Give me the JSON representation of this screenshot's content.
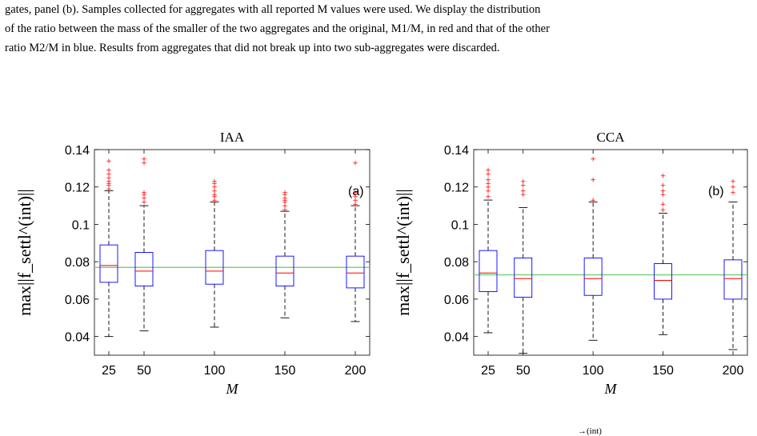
{
  "caption": {
    "line1": "gates, panel (b). Samples collected for aggregates with all reported M values were used. We display the distribution",
    "line2": "of the ratio between the mass of the smaller of the two aggregates and the original, M1/M, in red and that of the other",
    "line3": "ratio M2/M in blue. Results from aggregates that did not break up into two sub-aggregates were discarded."
  },
  "footer_fragment": "→(int)",
  "colors": {
    "box": "#0000ff",
    "median": "#ff0000",
    "outlier": "#ff0000",
    "reference": "#7fd07f",
    "whisker": "#000000"
  },
  "chart_data": [
    {
      "type": "box",
      "title": "IAA",
      "panel_label": "(a)",
      "xlabel": "M",
      "ylabel": "max||f_settl^(int)||",
      "categories": [
        "25",
        "50",
        "100",
        "150",
        "200"
      ],
      "x": [
        25,
        50,
        100,
        150,
        200
      ],
      "ylim": [
        0.03,
        0.14
      ],
      "yticks": [
        "0.04",
        "0.06",
        "0.08",
        "0.1",
        "0.12",
        "0.14"
      ],
      "reference_line": 0.077,
      "boxes": [
        {
          "whislo": 0.04,
          "q1": 0.069,
          "med": 0.078,
          "q3": 0.089,
          "whishi": 0.118,
          "fliers": [
            0.119,
            0.121,
            0.122,
            0.123,
            0.125,
            0.127,
            0.129,
            0.134
          ]
        },
        {
          "whislo": 0.043,
          "q1": 0.067,
          "med": 0.075,
          "q3": 0.085,
          "whishi": 0.11,
          "fliers": [
            0.112,
            0.114,
            0.116,
            0.117,
            0.133,
            0.135
          ]
        },
        {
          "whislo": 0.045,
          "q1": 0.068,
          "med": 0.075,
          "q3": 0.086,
          "whishi": 0.112,
          "fliers": [
            0.113,
            0.115,
            0.116,
            0.118,
            0.12,
            0.122,
            0.123
          ]
        },
        {
          "whislo": 0.05,
          "q1": 0.067,
          "med": 0.074,
          "q3": 0.083,
          "whishi": 0.107,
          "fliers": [
            0.108,
            0.11,
            0.112,
            0.113,
            0.114,
            0.116,
            0.117
          ]
        },
        {
          "whislo": 0.048,
          "q1": 0.066,
          "med": 0.074,
          "q3": 0.083,
          "whishi": 0.11,
          "fliers": [
            0.111,
            0.113,
            0.115,
            0.117,
            0.133
          ]
        }
      ]
    },
    {
      "type": "box",
      "title": "CCA",
      "panel_label": "(b)",
      "xlabel": "M",
      "ylabel": "max||f_settl^(int)||",
      "categories": [
        "25",
        "50",
        "100",
        "150",
        "200"
      ],
      "x": [
        25,
        50,
        100,
        150,
        200
      ],
      "ylim": [
        0.03,
        0.14
      ],
      "yticks": [
        "0.04",
        "0.06",
        "0.08",
        "0.1",
        "0.12",
        "0.14"
      ],
      "reference_line": 0.073,
      "boxes": [
        {
          "whislo": 0.042,
          "q1": 0.064,
          "med": 0.074,
          "q3": 0.086,
          "whishi": 0.113,
          "fliers": [
            0.115,
            0.118,
            0.12,
            0.122,
            0.124,
            0.127,
            0.129
          ]
        },
        {
          "whislo": 0.031,
          "q1": 0.061,
          "med": 0.071,
          "q3": 0.082,
          "whishi": 0.109,
          "fliers": [
            0.116,
            0.118,
            0.121,
            0.123
          ]
        },
        {
          "whislo": 0.038,
          "q1": 0.062,
          "med": 0.071,
          "q3": 0.082,
          "whishi": 0.112,
          "fliers": [
            0.113,
            0.124,
            0.135
          ]
        },
        {
          "whislo": 0.041,
          "q1": 0.06,
          "med": 0.07,
          "q3": 0.079,
          "whishi": 0.106,
          "fliers": [
            0.108,
            0.111,
            0.116,
            0.118,
            0.121,
            0.126
          ]
        },
        {
          "whislo": 0.033,
          "q1": 0.06,
          "med": 0.071,
          "q3": 0.081,
          "whishi": 0.112,
          "fliers": [
            0.117,
            0.12,
            0.123
          ]
        }
      ]
    }
  ]
}
